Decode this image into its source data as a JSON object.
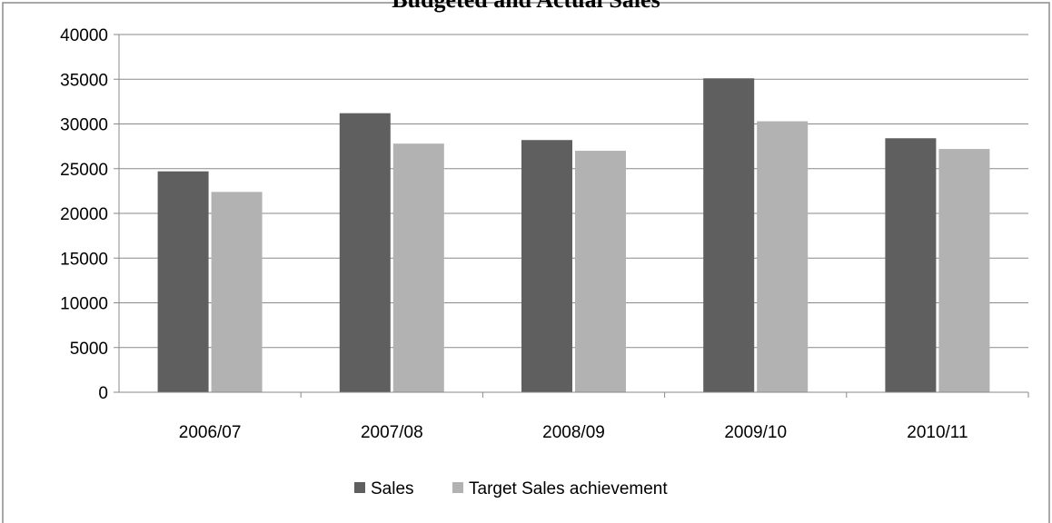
{
  "chart_data": {
    "type": "bar",
    "title": "Budgeted and Actual Sales",
    "categories": [
      "2006/07",
      "2007/08",
      "2008/09",
      "2009/10",
      "2010/11"
    ],
    "series": [
      {
        "name": "Sales",
        "values": [
          24700,
          31200,
          28200,
          35100,
          28400
        ],
        "color": "#5f5f5f"
      },
      {
        "name": "Target Sales achievement",
        "values": [
          22400,
          27800,
          27000,
          30300,
          27200
        ],
        "color": "#b2b2b2"
      }
    ],
    "yticks": [
      "0",
      "5000",
      "10000",
      "15000",
      "20000",
      "25000",
      "30000",
      "35000",
      "40000"
    ],
    "ylim": [
      0,
      40000
    ],
    "grid": true,
    "legend": "bottom"
  }
}
